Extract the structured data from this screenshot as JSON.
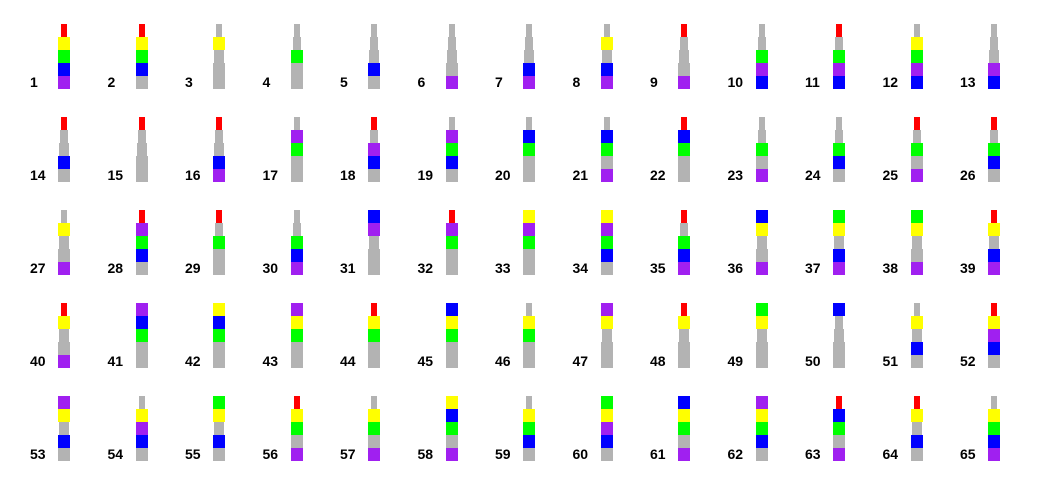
{
  "colors": {
    "red": "#ff0000",
    "yellow": "#ffff00",
    "green": "#00ff00",
    "blue": "#0000ff",
    "purple": "#a020f0",
    "stem": "#b3b3b3"
  },
  "items": [
    {
      "label": "1",
      "marks": [
        "red",
        "yellow",
        "green",
        "blue",
        "purple"
      ]
    },
    {
      "label": "2",
      "marks": [
        "red",
        "yellow",
        "green",
        "blue",
        ""
      ]
    },
    {
      "label": "3",
      "marks": [
        "",
        "yellow",
        "",
        "",
        ""
      ]
    },
    {
      "label": "4",
      "marks": [
        "",
        "",
        "green",
        "",
        ""
      ]
    },
    {
      "label": "5",
      "marks": [
        "",
        "",
        "",
        "blue",
        ""
      ]
    },
    {
      "label": "6",
      "marks": [
        "",
        "",
        "",
        "",
        "purple"
      ]
    },
    {
      "label": "7",
      "marks": [
        "",
        "",
        "",
        "blue",
        "purple"
      ]
    },
    {
      "label": "8",
      "marks": [
        "",
        "yellow",
        "",
        "blue",
        "purple"
      ]
    },
    {
      "label": "9",
      "marks": [
        "red",
        "",
        "",
        "",
        "purple"
      ]
    },
    {
      "label": "10",
      "marks": [
        "",
        "",
        "green",
        "purple",
        "blue"
      ]
    },
    {
      "label": "11",
      "marks": [
        "red",
        "",
        "green",
        "purple",
        "blue"
      ]
    },
    {
      "label": "12",
      "marks": [
        "",
        "yellow",
        "green",
        "purple",
        "blue"
      ]
    },
    {
      "label": "13",
      "marks": [
        "",
        "",
        "",
        "purple",
        "blue"
      ]
    },
    {
      "label": "14",
      "marks": [
        "red",
        "",
        "",
        "blue",
        ""
      ]
    },
    {
      "label": "15",
      "marks": [
        "red",
        "",
        "",
        "",
        ""
      ]
    },
    {
      "label": "16",
      "marks": [
        "red",
        "",
        "",
        "blue",
        "purple"
      ]
    },
    {
      "label": "17",
      "marks": [
        "",
        "purple",
        "green",
        "",
        ""
      ]
    },
    {
      "label": "18",
      "marks": [
        "red",
        "",
        "purple",
        "blue",
        ""
      ]
    },
    {
      "label": "19",
      "marks": [
        "",
        "purple",
        "green",
        "blue",
        ""
      ]
    },
    {
      "label": "20",
      "marks": [
        "",
        "blue",
        "green",
        "",
        ""
      ]
    },
    {
      "label": "21",
      "marks": [
        "",
        "blue",
        "green",
        "",
        "purple"
      ]
    },
    {
      "label": "22",
      "marks": [
        "red",
        "blue",
        "green",
        "",
        ""
      ]
    },
    {
      "label": "23",
      "marks": [
        "",
        "",
        "green",
        "",
        "purple"
      ]
    },
    {
      "label": "24",
      "marks": [
        "",
        "",
        "green",
        "blue",
        ""
      ]
    },
    {
      "label": "25",
      "marks": [
        "red",
        "",
        "green",
        "",
        "purple"
      ]
    },
    {
      "label": "26",
      "marks": [
        "red",
        "",
        "green",
        "blue",
        ""
      ]
    },
    {
      "label": "27",
      "marks": [
        "",
        "yellow",
        "",
        "",
        "purple"
      ]
    },
    {
      "label": "28",
      "marks": [
        "red",
        "purple",
        "green",
        "blue",
        ""
      ]
    },
    {
      "label": "29",
      "marks": [
        "red",
        "",
        "green",
        "",
        ""
      ]
    },
    {
      "label": "30",
      "marks": [
        "",
        "",
        "green",
        "blue",
        "purple"
      ]
    },
    {
      "label": "31",
      "marks": [
        "blue",
        "purple",
        "",
        "",
        ""
      ]
    },
    {
      "label": "32",
      "marks": [
        "red",
        "purple",
        "green",
        "",
        ""
      ]
    },
    {
      "label": "33",
      "marks": [
        "yellow",
        "purple",
        "green",
        "",
        ""
      ]
    },
    {
      "label": "34",
      "marks": [
        "yellow",
        "purple",
        "green",
        "blue",
        ""
      ]
    },
    {
      "label": "35",
      "marks": [
        "red",
        "",
        "green",
        "blue",
        "purple"
      ]
    },
    {
      "label": "36",
      "marks": [
        "blue",
        "yellow",
        "",
        "",
        "purple"
      ]
    },
    {
      "label": "37",
      "marks": [
        "green",
        "yellow",
        "",
        "blue",
        "purple"
      ]
    },
    {
      "label": "38",
      "marks": [
        "green",
        "yellow",
        "",
        "",
        "purple"
      ]
    },
    {
      "label": "39",
      "marks": [
        "red",
        "yellow",
        "",
        "blue",
        "purple"
      ]
    },
    {
      "label": "40",
      "marks": [
        "red",
        "yellow",
        "",
        "",
        "purple"
      ]
    },
    {
      "label": "41",
      "marks": [
        "purple",
        "blue",
        "green",
        "",
        ""
      ]
    },
    {
      "label": "42",
      "marks": [
        "yellow",
        "blue",
        "green",
        "",
        ""
      ]
    },
    {
      "label": "43",
      "marks": [
        "purple",
        "yellow",
        "green",
        "",
        ""
      ]
    },
    {
      "label": "44",
      "marks": [
        "red",
        "yellow",
        "green",
        "",
        ""
      ]
    },
    {
      "label": "45",
      "marks": [
        "blue",
        "yellow",
        "green",
        "",
        ""
      ]
    },
    {
      "label": "46",
      "marks": [
        "",
        "yellow",
        "green",
        "",
        ""
      ]
    },
    {
      "label": "47",
      "marks": [
        "purple",
        "yellow",
        "",
        "",
        ""
      ]
    },
    {
      "label": "48",
      "marks": [
        "red",
        "yellow",
        "",
        "",
        ""
      ]
    },
    {
      "label": "49",
      "marks": [
        "green",
        "yellow",
        "",
        "",
        ""
      ]
    },
    {
      "label": "50",
      "marks": [
        "blue",
        "",
        "",
        "",
        ""
      ]
    },
    {
      "label": "51",
      "marks": [
        "",
        "yellow",
        "",
        "blue",
        ""
      ]
    },
    {
      "label": "52",
      "marks": [
        "red",
        "yellow",
        "purple",
        "blue",
        ""
      ]
    },
    {
      "label": "53",
      "marks": [
        "purple",
        "yellow",
        "",
        "blue",
        ""
      ]
    },
    {
      "label": "54",
      "marks": [
        "",
        "yellow",
        "purple",
        "blue",
        ""
      ]
    },
    {
      "label": "55",
      "marks": [
        "green",
        "yellow",
        "",
        "blue",
        ""
      ]
    },
    {
      "label": "56",
      "marks": [
        "red",
        "yellow",
        "green",
        "",
        "purple"
      ]
    },
    {
      "label": "57",
      "marks": [
        "",
        "yellow",
        "green",
        "",
        "purple"
      ]
    },
    {
      "label": "58",
      "marks": [
        "yellow",
        "blue",
        "green",
        "",
        "purple"
      ]
    },
    {
      "label": "59",
      "marks": [
        "",
        "yellow",
        "green",
        "blue",
        ""
      ]
    },
    {
      "label": "60",
      "marks": [
        "green",
        "yellow",
        "purple",
        "blue",
        ""
      ]
    },
    {
      "label": "61",
      "marks": [
        "blue",
        "yellow",
        "green",
        "",
        "purple"
      ]
    },
    {
      "label": "62",
      "marks": [
        "purple",
        "yellow",
        "green",
        "blue",
        ""
      ]
    },
    {
      "label": "63",
      "marks": [
        "red",
        "blue",
        "green",
        "",
        "purple"
      ]
    },
    {
      "label": "64",
      "marks": [
        "red",
        "yellow",
        "",
        "blue",
        ""
      ]
    },
    {
      "label": "65",
      "marks": [
        "",
        "yellow",
        "green",
        "blue",
        "purple"
      ]
    }
  ]
}
